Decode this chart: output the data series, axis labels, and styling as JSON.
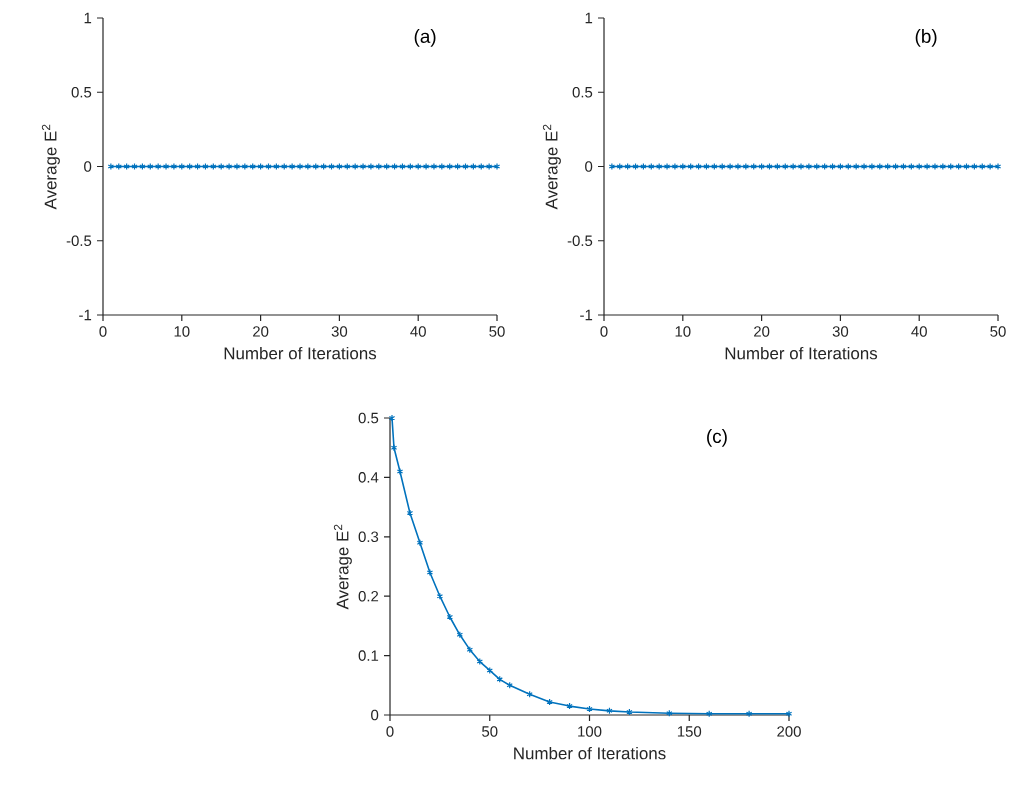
{
  "chart_data": [
    {
      "type": "line",
      "xlabel": "Number of Iterations",
      "ylabel": "Average E$^{2}$",
      "annotations": [
        "(a)"
      ],
      "color": "#0072bd",
      "marker": "cross",
      "x": [
        1,
        2,
        3,
        4,
        5,
        6,
        7,
        8,
        9,
        10,
        11,
        12,
        13,
        14,
        15,
        16,
        17,
        18,
        19,
        20,
        21,
        22,
        23,
        24,
        25,
        26,
        27,
        28,
        29,
        30,
        31,
        32,
        33,
        34,
        35,
        36,
        37,
        38,
        39,
        40,
        41,
        42,
        43,
        44,
        45,
        46,
        47,
        48,
        49,
        50
      ],
      "values": [
        0,
        0,
        0,
        0,
        0,
        0,
        0,
        0,
        0,
        0,
        0,
        0,
        0,
        0,
        0,
        0,
        0,
        0,
        0,
        0,
        0,
        0,
        0,
        0,
        0,
        0,
        0,
        0,
        0,
        0,
        0,
        0,
        0,
        0,
        0,
        0,
        0,
        0,
        0,
        0,
        0,
        0,
        0,
        0,
        0,
        0,
        0,
        0,
        0,
        0
      ],
      "xlim": [
        0,
        50
      ],
      "xticks": [
        0,
        10,
        20,
        30,
        40,
        50
      ],
      "ylim": [
        -1,
        1
      ],
      "yticks": [
        -1,
        -0.5,
        0,
        0.5,
        1
      ]
    },
    {
      "type": "line",
      "xlabel": "Number of Iterations",
      "ylabel": "Average E$^{2}$",
      "annotations": [
        "(b)"
      ],
      "color": "#0072bd",
      "marker": "cross",
      "x": [
        1,
        2,
        3,
        4,
        5,
        6,
        7,
        8,
        9,
        10,
        11,
        12,
        13,
        14,
        15,
        16,
        17,
        18,
        19,
        20,
        21,
        22,
        23,
        24,
        25,
        26,
        27,
        28,
        29,
        30,
        31,
        32,
        33,
        34,
        35,
        36,
        37,
        38,
        39,
        40,
        41,
        42,
        43,
        44,
        45,
        46,
        47,
        48,
        49,
        50
      ],
      "values": [
        0,
        0,
        0,
        0,
        0,
        0,
        0,
        0,
        0,
        0,
        0,
        0,
        0,
        0,
        0,
        0,
        0,
        0,
        0,
        0,
        0,
        0,
        0,
        0,
        0,
        0,
        0,
        0,
        0,
        0,
        0,
        0,
        0,
        0,
        0,
        0,
        0,
        0,
        0,
        0,
        0,
        0,
        0,
        0,
        0,
        0,
        0,
        0,
        0,
        0
      ],
      "xlim": [
        0,
        50
      ],
      "xticks": [
        0,
        10,
        20,
        30,
        40,
        50
      ],
      "ylim": [
        -1,
        1
      ],
      "yticks": [
        -1,
        -0.5,
        0,
        0.5,
        1
      ]
    },
    {
      "type": "line",
      "xlabel": "Number of Iterations",
      "ylabel": "Average E$^{2}$",
      "annotations": [
        "(c)"
      ],
      "color": "#0072bd",
      "marker": "cross",
      "x": [
        1,
        2,
        5,
        10,
        15,
        20,
        25,
        30,
        35,
        40,
        45,
        50,
        55,
        60,
        70,
        80,
        90,
        100,
        110,
        120,
        140,
        160,
        180,
        200
      ],
      "values": [
        0.5,
        0.45,
        0.41,
        0.34,
        0.29,
        0.24,
        0.2,
        0.165,
        0.135,
        0.11,
        0.09,
        0.075,
        0.06,
        0.05,
        0.035,
        0.022,
        0.015,
        0.01,
        0.007,
        0.005,
        0.003,
        0.002,
        0.002,
        0.002
      ],
      "xlim": [
        0,
        200
      ],
      "xticks": [
        0,
        50,
        100,
        150,
        200
      ],
      "ylim": [
        0,
        0.5
      ],
      "yticks": [
        0,
        0.1,
        0.2,
        0.3,
        0.4,
        0.5
      ]
    }
  ]
}
